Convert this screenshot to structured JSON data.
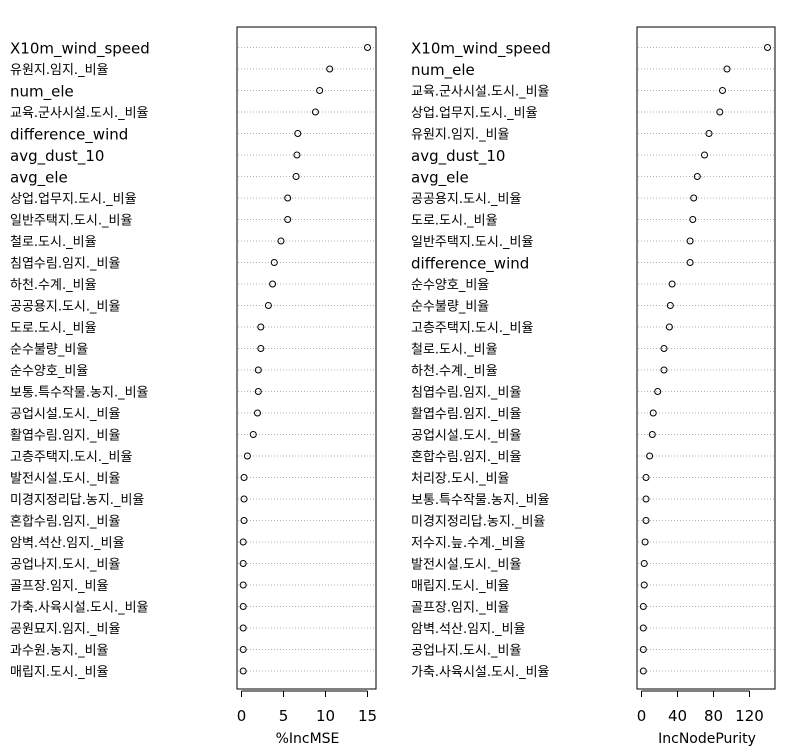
{
  "chart_data": [
    {
      "type": "dotchart",
      "xlabel": "%IncMSE",
      "xlim": [
        0,
        15
      ],
      "xticks": [
        0,
        5,
        10,
        15
      ],
      "grid": "dotted horizontal",
      "rows": [
        {
          "label": "X10m_wind_speed",
          "value": 15.0
        },
        {
          "label": "유원지.임지._비율",
          "value": 10.5
        },
        {
          "label": "num_ele",
          "value": 9.3
        },
        {
          "label": "교육.군사시설.도시._비율",
          "value": 8.8
        },
        {
          "label": "difference_wind",
          "value": 6.7
        },
        {
          "label": "avg_dust_10",
          "value": 6.6
        },
        {
          "label": "avg_ele",
          "value": 6.5
        },
        {
          "label": "상업.업무지.도시._비율",
          "value": 5.5
        },
        {
          "label": "일반주택지.도시._비율",
          "value": 5.5
        },
        {
          "label": "철로.도시._비율",
          "value": 4.7
        },
        {
          "label": "침엽수림.임지._비율",
          "value": 3.9
        },
        {
          "label": "하천.수계._비율",
          "value": 3.7
        },
        {
          "label": "공공용지.도시._비율",
          "value": 3.2
        },
        {
          "label": "도로.도시._비율",
          "value": 2.3
        },
        {
          "label": "순수불량_비율",
          "value": 2.3
        },
        {
          "label": "순수양호_비율",
          "value": 2.0
        },
        {
          "label": "보통.특수작물.농지._비율",
          "value": 2.0
        },
        {
          "label": "공업시설.도시._비율",
          "value": 1.9
        },
        {
          "label": "활엽수림.임지._비율",
          "value": 1.4
        },
        {
          "label": "고층주택지.도시._비율",
          "value": 0.7
        },
        {
          "label": "발전시설.도시._비율",
          "value": 0.3
        },
        {
          "label": "미경지정리답.농지._비율",
          "value": 0.3
        },
        {
          "label": "혼합수림.임지._비율",
          "value": 0.3
        },
        {
          "label": "암벽.석산.임지._비율",
          "value": 0.2
        },
        {
          "label": "공업나지.도시._비율",
          "value": 0.2
        },
        {
          "label": "골프장.임지._비율",
          "value": 0.2
        },
        {
          "label": "가축.사육시설.도시._비율",
          "value": 0.2
        },
        {
          "label": "공원묘지.임지._비율",
          "value": 0.2
        },
        {
          "label": "과수원.농지._비율",
          "value": 0.2
        },
        {
          "label": "매립지.도시._비율",
          "value": 0.2
        }
      ]
    },
    {
      "type": "dotchart",
      "xlabel": "IncNodePurity",
      "xlim": [
        0,
        140
      ],
      "xticks": [
        0,
        40,
        80,
        120
      ],
      "grid": "dotted horizontal",
      "rows": [
        {
          "label": "X10m_wind_speed",
          "value": 140
        },
        {
          "label": "num_ele",
          "value": 95
        },
        {
          "label": "교육.군사시설.도시._비율",
          "value": 90
        },
        {
          "label": "상업.업무지.도시._비율",
          "value": 87
        },
        {
          "label": "유원지.임지._비율",
          "value": 75
        },
        {
          "label": "avg_dust_10",
          "value": 70
        },
        {
          "label": "avg_ele",
          "value": 62
        },
        {
          "label": "공공용지.도시._비율",
          "value": 58
        },
        {
          "label": "도로.도시._비율",
          "value": 57
        },
        {
          "label": "일반주택지.도시._비율",
          "value": 54
        },
        {
          "label": "difference_wind",
          "value": 54
        },
        {
          "label": "순수양호_비율",
          "value": 34
        },
        {
          "label": "순수불량_비율",
          "value": 32
        },
        {
          "label": "고층주택지.도시._비율",
          "value": 31
        },
        {
          "label": "철로.도시._비율",
          "value": 25
        },
        {
          "label": "하천.수계._비율",
          "value": 25
        },
        {
          "label": "침엽수림.임지._비율",
          "value": 18
        },
        {
          "label": "활엽수림.임지._비율",
          "value": 13
        },
        {
          "label": "공업시설.도시._비율",
          "value": 12
        },
        {
          "label": "혼합수림.임지._비율",
          "value": 9
        },
        {
          "label": "처리장.도시._비율",
          "value": 5
        },
        {
          "label": "보통.특수작물.농지._비율",
          "value": 5
        },
        {
          "label": "미경지정리답.농지._비율",
          "value": 5
        },
        {
          "label": "저수지.늪.수계._비율",
          "value": 4
        },
        {
          "label": "발전시설.도시._비율",
          "value": 3
        },
        {
          "label": "매립지.도시._비율",
          "value": 3
        },
        {
          "label": "골프장.임지._비율",
          "value": 2
        },
        {
          "label": "암벽.석산.임지._비율",
          "value": 2
        },
        {
          "label": "공업나지.도시._비율",
          "value": 2
        },
        {
          "label": "가축.사육시설.도시._비율",
          "value": 2
        }
      ]
    }
  ]
}
